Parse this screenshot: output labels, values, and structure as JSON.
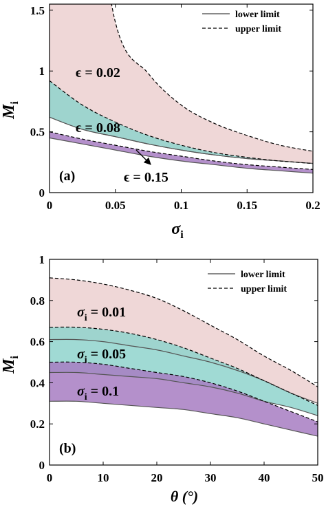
{
  "chart_data": [
    {
      "type": "area",
      "panel_label": "(a)",
      "xlabel": "σ",
      "xlabel_sub": "i",
      "ylabel": "M",
      "ylabel_sub": "i",
      "xlim": [
        0,
        0.2
      ],
      "ylim": [
        0,
        1.55
      ],
      "x_ticks": [
        "0",
        "0.05",
        "0.1",
        "0.15",
        "0.2"
      ],
      "x_tick_values": [
        0,
        0.05,
        0.1,
        0.15,
        0.2
      ],
      "y_ticks": [
        "0",
        "0.5",
        "1",
        "1.5"
      ],
      "y_tick_values": [
        0,
        0.5,
        1,
        1.5
      ],
      "grid": false,
      "legend_position": "top-right",
      "legend": [
        {
          "label": "lower limit",
          "style": "solid"
        },
        {
          "label": "upper limit",
          "style": "dashed"
        }
      ],
      "x": [
        0,
        0.025,
        0.05,
        0.075,
        0.1,
        0.125,
        0.15,
        0.175,
        0.2
      ],
      "series": [
        {
          "name": "ϵ = 0.02",
          "color": "#ecd0d0",
          "lower": [
            0.62,
            0.52,
            0.46,
            0.4,
            0.35,
            0.31,
            0.28,
            0.26,
            0.24
          ],
          "upper": [
            null,
            null,
            1.4,
            0.98,
            0.72,
            0.57,
            0.47,
            0.39,
            0.34
          ]
        },
        {
          "name": "ϵ = 0.08",
          "color": "#8fd3cc",
          "lower": [
            0.62,
            0.52,
            0.46,
            0.4,
            0.35,
            0.31,
            0.28,
            0.26,
            0.24
          ],
          "upper": [
            0.92,
            0.72,
            0.58,
            0.47,
            0.39,
            0.33,
            0.29,
            0.26,
            0.24
          ]
        },
        {
          "name": "ϵ = 0.15",
          "color": "#a77cc2",
          "lower": [
            0.45,
            0.4,
            0.35,
            0.3,
            0.26,
            0.23,
            0.2,
            0.18,
            0.16
          ],
          "upper": [
            0.5,
            0.44,
            0.39,
            0.34,
            0.3,
            0.26,
            0.23,
            0.21,
            0.19
          ]
        }
      ]
    },
    {
      "type": "area",
      "panel_label": "(b)",
      "xlabel": "θ (°)",
      "ylabel": "M",
      "ylabel_sub": "i",
      "xlim": [
        0,
        50
      ],
      "ylim": [
        0,
        1
      ],
      "x_ticks": [
        "0",
        "10",
        "20",
        "30",
        "40",
        "50"
      ],
      "x_tick_values": [
        0,
        10,
        20,
        30,
        40,
        50
      ],
      "y_ticks": [
        "0",
        "0.2",
        "0.4",
        "0.6",
        "0.8",
        "1"
      ],
      "y_tick_values": [
        0,
        0.2,
        0.4,
        0.6,
        0.8,
        1
      ],
      "grid": false,
      "legend_position": "top-right",
      "legend": [
        {
          "label": "lower limit",
          "style": "solid"
        },
        {
          "label": "upper limit",
          "style": "dashed"
        }
      ],
      "x": [
        0,
        5,
        10,
        15,
        20,
        25,
        30,
        35,
        40,
        45,
        50
      ],
      "series": [
        {
          "name": "σ_i = 0.01",
          "label_main": "σ",
          "label_sub": "i",
          "label_rest": " = 0.01",
          "color": "#ecd0d0",
          "lower": [
            0.61,
            0.61,
            0.6,
            0.58,
            0.56,
            0.53,
            0.5,
            0.46,
            0.41,
            0.35,
            0.3
          ],
          "upper": [
            0.91,
            0.9,
            0.88,
            0.85,
            0.81,
            0.75,
            0.68,
            0.61,
            0.53,
            0.46,
            0.38
          ]
        },
        {
          "name": "σ_i = 0.05",
          "label_main": "σ",
          "label_sub": "i",
          "label_rest": " = 0.05",
          "color": "#8fd3cc",
          "lower": [
            0.45,
            0.45,
            0.44,
            0.43,
            0.42,
            0.4,
            0.38,
            0.35,
            0.31,
            0.28,
            0.24
          ],
          "upper": [
            0.67,
            0.67,
            0.66,
            0.64,
            0.61,
            0.57,
            0.52,
            0.47,
            0.41,
            0.35,
            0.29
          ]
        },
        {
          "name": "σ_i = 0.1",
          "label_main": "σ",
          "label_sub": "i",
          "label_rest": " = 0.1",
          "color": "#a77cc2",
          "lower": [
            0.31,
            0.31,
            0.3,
            0.29,
            0.28,
            0.27,
            0.25,
            0.23,
            0.2,
            0.17,
            0.14
          ],
          "upper": [
            0.5,
            0.5,
            0.49,
            0.47,
            0.45,
            0.43,
            0.4,
            0.36,
            0.31,
            0.26,
            0.21
          ]
        }
      ]
    }
  ]
}
